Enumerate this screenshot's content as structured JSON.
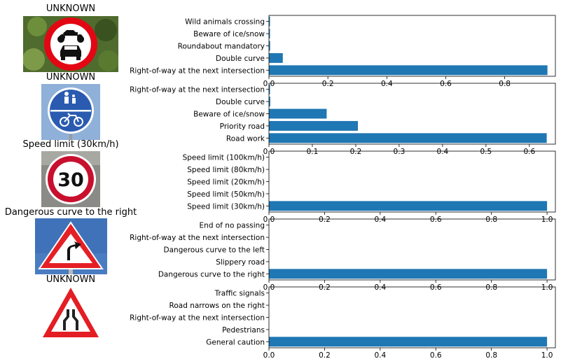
{
  "colors": {
    "bar": "#1f77b4",
    "axis": "#000000"
  },
  "panels": [
    {
      "image_title": "UNKNOWN",
      "image_icon": "no-motor-vehicles-sign-icon",
      "image_bg": "#4f6b2d"
    },
    {
      "image_title": "UNKNOWN",
      "image_icon": "shared-pedestrian-bicycle-path-sign-icon",
      "image_bg": "#8fb0d8"
    },
    {
      "image_title": "Speed limit (30km/h)",
      "image_icon": "speed-limit-30-sign-icon",
      "image_bg": "#8a8a86",
      "sign_text": "30"
    },
    {
      "image_title": "Dangerous curve to the right",
      "image_icon": "dangerous-curve-right-sign-icon",
      "image_bg": "#3f72b8"
    },
    {
      "image_title": "UNKNOWN",
      "image_icon": "road-narrows-sign-icon",
      "image_bg": "#ffffff"
    }
  ],
  "chart_data": [
    {
      "type": "bar",
      "orientation": "horizontal",
      "categories": [
        "Right-of-way at the next intersection",
        "Double curve",
        "Roundabout mandatory",
        "Beware of ice/snow",
        "Wild animals crossing"
      ],
      "values": [
        0.945,
        0.047,
        0.004,
        0.002,
        0.001
      ],
      "xlim": [
        0,
        0.972
      ],
      "xticks": [
        "0.0",
        "0.2",
        "0.4",
        "0.6",
        "0.8"
      ]
    },
    {
      "type": "bar",
      "orientation": "horizontal",
      "categories": [
        "Road work",
        "Priority road",
        "Beware of ice/snow",
        "Double curve",
        "Right-of-way at the next intersection"
      ],
      "values": [
        0.64,
        0.205,
        0.133,
        0.003,
        0.002
      ],
      "xlim": [
        0,
        0.66
      ],
      "xticks": [
        "0.0",
        "0.1",
        "0.2",
        "0.3",
        "0.4",
        "0.5",
        "0.6"
      ]
    },
    {
      "type": "bar",
      "orientation": "horizontal",
      "categories": [
        "Speed limit (30km/h)",
        "Speed limit (50km/h)",
        "Speed limit (20km/h)",
        "Speed limit (80km/h)",
        "Speed limit (100km/h)"
      ],
      "values": [
        1.0,
        0.0,
        0.0,
        0.0,
        0.0
      ],
      "xlim": [
        0,
        1.03
      ],
      "xticks": [
        "0.0",
        "0.2",
        "0.4",
        "0.6",
        "0.8",
        "1.0"
      ]
    },
    {
      "type": "bar",
      "orientation": "horizontal",
      "categories": [
        "Dangerous curve to the right",
        "Slippery road",
        "Dangerous curve to the left",
        "Right-of-way at the next intersection",
        "End of no passing"
      ],
      "values": [
        1.0,
        0.0,
        0.0,
        0.0,
        0.0
      ],
      "xlim": [
        0,
        1.03
      ],
      "xticks": [
        "0.0",
        "0.2",
        "0.4",
        "0.6",
        "0.8",
        "1.0"
      ]
    },
    {
      "type": "bar",
      "orientation": "horizontal",
      "categories": [
        "General caution",
        "Pedestrians",
        "Right-of-way at the next intersection",
        "Road narrows on the right",
        "Traffic signals"
      ],
      "values": [
        1.0,
        0.0,
        0.0,
        0.0,
        0.0
      ],
      "xlim": [
        0,
        1.03
      ],
      "xticks": [
        "0.0",
        "0.2",
        "0.4",
        "0.6",
        "0.8",
        "1.0"
      ]
    }
  ]
}
